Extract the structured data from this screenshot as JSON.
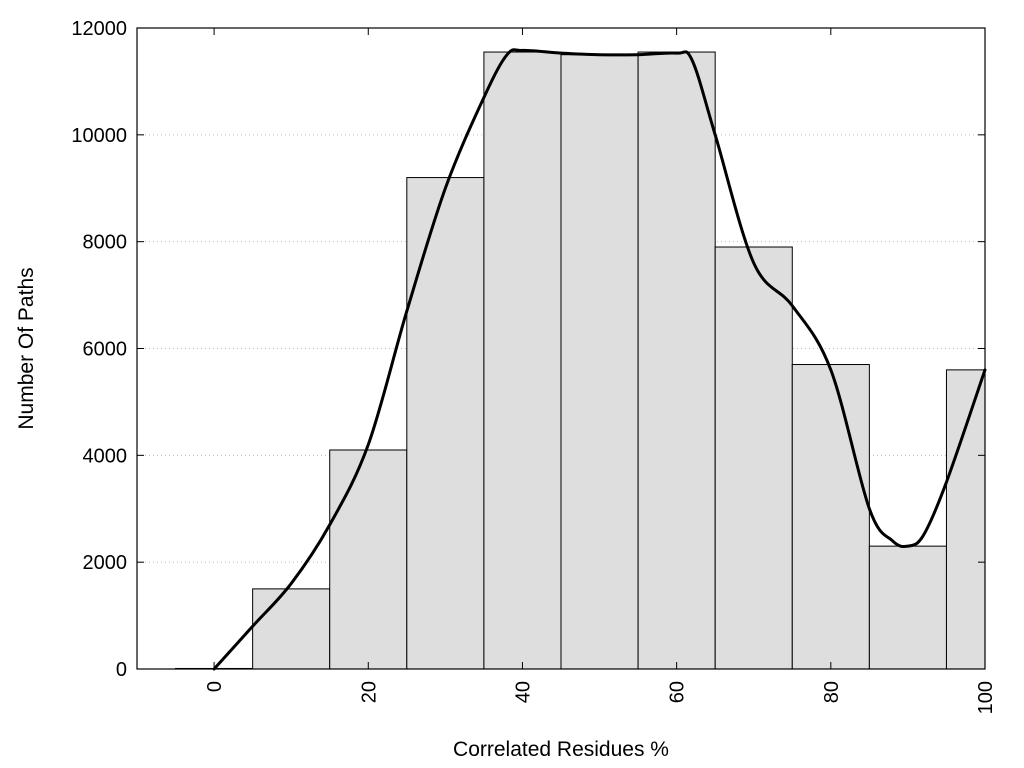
{
  "chart_data": {
    "type": "bar",
    "xlabel": "Correlated Residues %",
    "ylabel": "Number Of Paths",
    "xlim": [
      -10,
      100
    ],
    "ylim": [
      0,
      12000
    ],
    "x_ticks": [
      0,
      20,
      40,
      60,
      80,
      100
    ],
    "y_ticks": [
      0,
      2000,
      4000,
      6000,
      8000,
      10000,
      12000
    ],
    "grid": "horizontal dotted",
    "bar_width": 10,
    "bar_color": "#dedede",
    "bars": {
      "x": [
        0,
        10,
        20,
        30,
        40,
        50,
        60,
        70,
        80,
        90,
        100
      ],
      "values": [
        10,
        1500,
        4100,
        9200,
        11550,
        11500,
        11550,
        7900,
        5700,
        2300,
        5600
      ]
    },
    "curve": {
      "color": "#000000",
      "x": [
        0,
        5,
        10,
        15,
        20,
        25,
        30,
        35,
        38,
        40,
        45,
        50,
        55,
        60,
        62,
        65,
        70,
        75,
        80,
        85,
        88,
        90,
        92,
        95,
        100
      ],
      "y": [
        0,
        800,
        1600,
        2700,
        4200,
        6700,
        9000,
        10700,
        11500,
        11580,
        11530,
        11500,
        11500,
        11530,
        11400,
        10000,
        7600,
        6800,
        5600,
        3000,
        2400,
        2300,
        2500,
        3500,
        5600
      ]
    }
  }
}
